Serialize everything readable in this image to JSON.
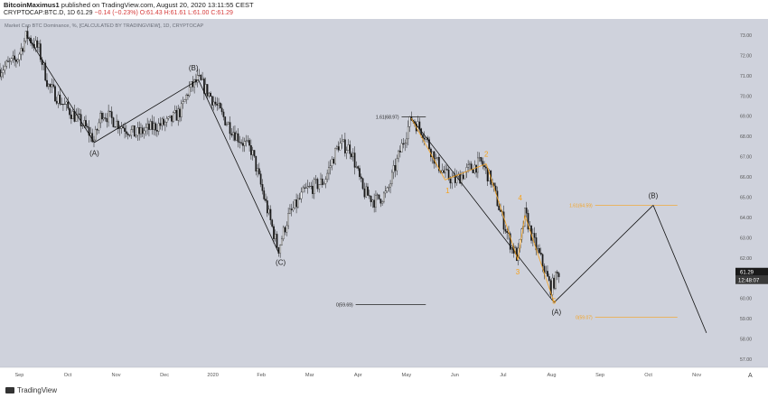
{
  "header": {
    "author": "BitcoinMaximus1",
    "published": "published on TradingView.com, August 20, 2020 13:11:55 CEST",
    "symbol": "CRYPTOCAP:BTC.D, 1D",
    "last": "61.29",
    "change": "−0.14 (−0.23%)",
    "ohlc": "O:61.43 H:61.61 L:61.00 C:61.29"
  },
  "footer": {
    "brand": "TradingView"
  },
  "chart_data": {
    "type": "candlestick",
    "title": "Market Cap BTC Dominance, %, [CALCULATED BY TRADINGVIEW], 1D, CRYPTOCAP",
    "x_labels": [
      "Sep",
      "Oct",
      "Nov",
      "Dec",
      "2020",
      "Feb",
      "Mar",
      "Apr",
      "May",
      "Jun",
      "Jul",
      "Aug",
      "Sep",
      "Oct",
      "Nov"
    ],
    "y_ticks": [
      "73.00",
      "72.00",
      "71.00",
      "70.00",
      "69.00",
      "68.00",
      "67.00",
      "66.00",
      "65.00",
      "64.00",
      "63.00",
      "62.00",
      "61.00",
      "60.00",
      "59.00",
      "58.00",
      "57.00"
    ],
    "y_range": [
      56.6,
      73.8
    ],
    "x_range_months": [
      0,
      15.2
    ],
    "price_label": {
      "value": 61.29,
      "text": "61.29",
      "countdown": "12:48:07"
    },
    "ohlc_last": {
      "open": 61.43,
      "high": 61.61,
      "low": 61.0,
      "close": 61.29
    },
    "anchors": [
      [
        0.0,
        71.3
      ],
      [
        0.35,
        71.8
      ],
      [
        0.55,
        73.0
      ],
      [
        0.8,
        72.3
      ],
      [
        1.0,
        70.5
      ],
      [
        1.3,
        69.6
      ],
      [
        1.75,
        68.5
      ],
      [
        1.95,
        67.8
      ],
      [
        2.1,
        69.2
      ],
      [
        2.4,
        68.7
      ],
      [
        2.8,
        68.1
      ],
      [
        3.2,
        68.5
      ],
      [
        3.5,
        68.7
      ],
      [
        3.75,
        69.3
      ],
      [
        3.9,
        70.3
      ],
      [
        4.1,
        70.8
      ],
      [
        4.35,
        70.0
      ],
      [
        4.6,
        69.0
      ],
      [
        4.9,
        68.0
      ],
      [
        5.2,
        67.3
      ],
      [
        5.5,
        64.6
      ],
      [
        5.75,
        62.4
      ],
      [
        5.95,
        64.0
      ],
      [
        6.3,
        65.3
      ],
      [
        6.7,
        65.8
      ],
      [
        7.0,
        67.6
      ],
      [
        7.25,
        67.4
      ],
      [
        7.5,
        65.3
      ],
      [
        7.75,
        64.8
      ],
      [
        8.0,
        65.2
      ],
      [
        8.3,
        67.5
      ],
      [
        8.5,
        68.9
      ],
      [
        8.75,
        68.2
      ],
      [
        9.0,
        66.8
      ],
      [
        9.2,
        66.1
      ],
      [
        9.4,
        65.8
      ],
      [
        9.7,
        66.4
      ],
      [
        9.95,
        66.7
      ],
      [
        10.15,
        65.8
      ],
      [
        10.35,
        64.2
      ],
      [
        10.55,
        62.7
      ],
      [
        10.7,
        62.0
      ],
      [
        10.85,
        64.2
      ],
      [
        11.0,
        63.0
      ],
      [
        11.2,
        61.8
      ],
      [
        11.38,
        60.5
      ],
      [
        11.55,
        61.3
      ]
    ],
    "annotations": [
      {
        "text": "(A)",
        "x": 1.95,
        "y": 67.05,
        "color": "#222222"
      },
      {
        "text": "(B)",
        "x": 4.0,
        "y": 71.25,
        "color": "#222222"
      },
      {
        "text": "(C)",
        "x": 5.8,
        "y": 61.65,
        "color": "#222222"
      },
      {
        "text": "(A)",
        "x": 11.5,
        "y": 59.2,
        "color": "#222222"
      },
      {
        "text": "(B)",
        "x": 13.5,
        "y": 64.95,
        "color": "#222222"
      },
      {
        "text": "1",
        "x": 9.25,
        "y": 65.2,
        "color": "#f7a21b"
      },
      {
        "text": "2",
        "x": 10.05,
        "y": 67.0,
        "color": "#f7a21b"
      },
      {
        "text": "3",
        "x": 10.7,
        "y": 61.2,
        "color": "#f7a21b"
      },
      {
        "text": "4",
        "x": 10.75,
        "y": 64.85,
        "color": "#f7a21b"
      },
      {
        "text": "5",
        "x": 11.45,
        "y": 59.75,
        "color": "#f7a21b"
      }
    ],
    "fib_levels": [
      {
        "label": "1.61(68.97)",
        "value": 68.97,
        "x_start": 8.3,
        "x_end": 8.8,
        "color": "#222222"
      },
      {
        "label": "0(59.69)",
        "value": 59.69,
        "x_start": 7.35,
        "x_end": 8.8,
        "color": "#222222"
      },
      {
        "label": "1.61(64.59)",
        "value": 64.59,
        "x_start": 12.3,
        "x_end": 14.0,
        "color": "#f7a21b"
      },
      {
        "label": "0(59.07)",
        "value": 59.07,
        "x_start": 12.3,
        "x_end": 14.0,
        "color": "#f7a21b"
      }
    ],
    "trend_lines": [
      [
        [
          0.55,
          73.0
        ],
        [
          1.95,
          67.7
        ]
      ],
      [
        [
          1.95,
          67.7
        ],
        [
          4.1,
          70.8
        ]
      ],
      [
        [
          4.1,
          70.8
        ],
        [
          5.75,
          62.3
        ]
      ],
      [
        [
          8.5,
          68.9
        ],
        [
          11.45,
          59.8
        ]
      ],
      [
        [
          11.45,
          59.8
        ],
        [
          13.5,
          64.6
        ]
      ],
      [
        [
          13.5,
          64.6
        ],
        [
          14.6,
          58.3
        ]
      ]
    ],
    "wave_lines": [
      [
        [
          8.5,
          68.9
        ],
        [
          9.2,
          65.85
        ]
      ],
      [
        [
          9.2,
          65.85
        ],
        [
          10.05,
          66.65
        ]
      ],
      [
        [
          10.05,
          66.65
        ],
        [
          10.7,
          61.9
        ]
      ],
      [
        [
          10.7,
          61.9
        ],
        [
          10.85,
          64.1
        ]
      ],
      [
        [
          10.85,
          64.1
        ],
        [
          11.45,
          59.8
        ]
      ]
    ],
    "grid": false,
    "background": "#cfd2dc",
    "candle_color": "#1a1a1a",
    "accent": "#f7a21b"
  }
}
